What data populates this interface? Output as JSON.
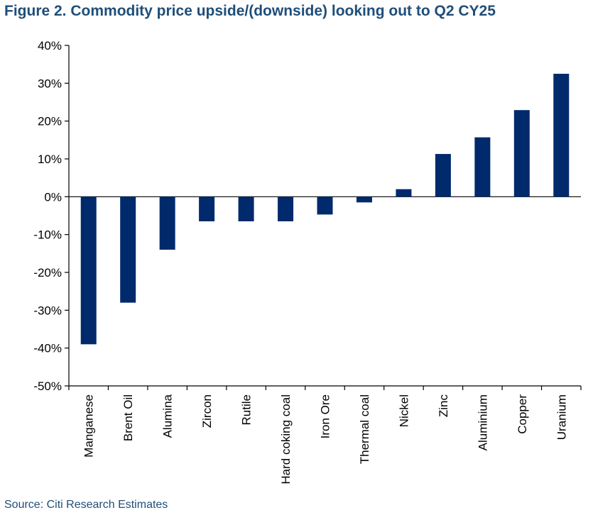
{
  "title": "Figure 2. Commodity price upside/(downside) looking out to Q2 CY25",
  "source": "Source: Citi Research Estimates",
  "colors": {
    "bar": "#002a6c",
    "axis": "#000000",
    "title": "#1f4e79"
  },
  "chart_data": {
    "type": "bar",
    "title": "Figure 2. Commodity price upside/(downside) looking out to Q2 CY25",
    "xlabel": "",
    "ylabel": "",
    "ylim": [
      -0.5,
      0.4
    ],
    "y_ticks": [
      0.4,
      0.3,
      0.2,
      0.1,
      0.0,
      -0.1,
      -0.2,
      -0.3,
      -0.4,
      -0.5
    ],
    "y_tick_labels": [
      "40%",
      "30%",
      "20%",
      "10%",
      "0%",
      "-10%",
      "-20%",
      "-30%",
      "-40%",
      "-50%"
    ],
    "categories": [
      "Manganese",
      "Brent Oil",
      "Alumina",
      "Zircon",
      "Rutile",
      "Hard coking coal",
      "Iron Ore",
      "Thermal coal",
      "Nickel",
      "Zinc",
      "Aluminium",
      "Copper",
      "Uranium"
    ],
    "values": [
      -0.39,
      -0.28,
      -0.14,
      -0.065,
      -0.065,
      -0.065,
      -0.047,
      -0.015,
      0.02,
      0.113,
      0.157,
      0.229,
      0.325
    ],
    "grid": false,
    "legend": "none"
  }
}
